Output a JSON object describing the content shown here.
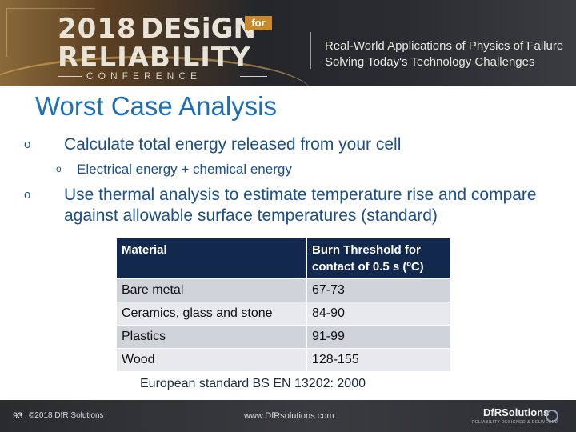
{
  "banner": {
    "year": "2018",
    "design": "DESiGN",
    "for": "for",
    "reliability": "RELIABILITY",
    "conference": "CONFERENCE",
    "tagline_1": "Real-World Applications of Physics of Failure",
    "tagline_2": "Solving Today's Technology Challenges"
  },
  "slide": {
    "title": "Worst Case Analysis",
    "bullet_mark": "o",
    "bullet_1": "Calculate total energy released from  your cell",
    "bullet_1_sub": "Electrical energy + chemical energy",
    "bullet_2": "Use thermal analysis to estimate temperature rise and compare against allowable surface temperatures (standard)"
  },
  "table": {
    "headers": [
      "Material",
      "Burn Threshold  for contact of 0.5 s (ºC)"
    ],
    "rows": [
      [
        "Bare metal",
        "67-73"
      ],
      [
        "Ceramics, glass and stone",
        "84-90"
      ],
      [
        "Plastics",
        "91-99"
      ],
      [
        "Wood",
        "128-155"
      ]
    ],
    "caption": "European standard BS EN 13202: 2000"
  },
  "footer": {
    "page_number": "93",
    "copyright": "©2018 DfR Solutions",
    "url": "www.DfRsolutions.com",
    "logo": "DfRSolutions",
    "logo_sub": "RELIABILITY DESIGNED & DELIVERED"
  }
}
